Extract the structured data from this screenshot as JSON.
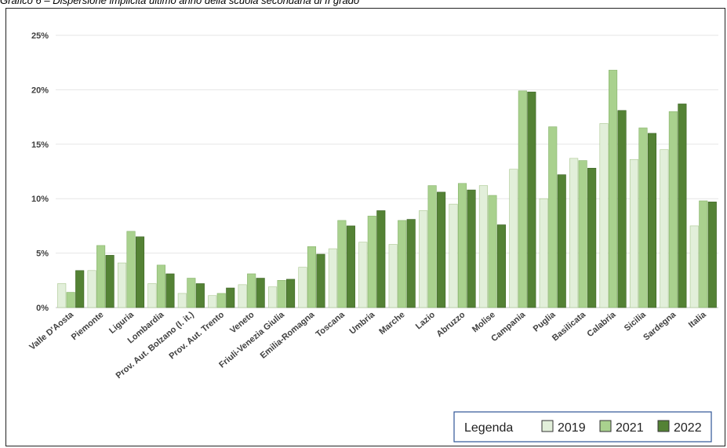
{
  "caption": "Grafico 6 – Dispersione implicita ultimo anno della scuola secondaria di II grado",
  "legend_title": "Legenda",
  "colors": {
    "2019": "#e2efda",
    "2021": "#a9d18e",
    "2022": "#548235"
  },
  "chart_data": {
    "type": "bar",
    "categories": [
      "Valle D'Aosta",
      "Piemonte",
      "Liguria",
      "Lombardia",
      "Prov. Aut. Bolzano (l. it.)",
      "Prov. Aut. Trento",
      "Veneto",
      "Friuli-Venezia Giulia",
      "Emilia-Romagna",
      "Toscana",
      "Umbria",
      "Marche",
      "Lazio",
      "Abruzzo",
      "Molise",
      "Campania",
      "Puglia",
      "Basilicata",
      "Calabria",
      "Sicilia",
      "Sardegna",
      "Italia"
    ],
    "series": [
      {
        "name": "2019",
        "values": [
          2.2,
          3.4,
          4.1,
          2.2,
          1.3,
          1.1,
          2.1,
          1.9,
          3.7,
          5.4,
          6.0,
          5.8,
          8.9,
          9.5,
          11.2,
          12.7,
          10.0,
          13.7,
          16.9,
          13.6,
          14.5,
          7.5
        ]
      },
      {
        "name": "2021",
        "values": [
          1.4,
          5.7,
          7.0,
          3.9,
          2.7,
          1.3,
          3.1,
          2.5,
          5.6,
          8.0,
          8.4,
          8.0,
          11.2,
          11.4,
          10.3,
          19.9,
          16.6,
          13.5,
          21.8,
          16.5,
          18.0,
          9.8
        ]
      },
      {
        "name": "2022",
        "values": [
          3.4,
          4.8,
          6.5,
          3.1,
          2.2,
          1.8,
          2.7,
          2.6,
          4.9,
          7.5,
          8.9,
          8.1,
          10.6,
          10.8,
          7.6,
          19.8,
          12.2,
          12.8,
          18.1,
          16.0,
          18.7,
          9.7
        ]
      }
    ],
    "yticks": [
      "0%",
      "5%",
      "10%",
      "15%",
      "20%",
      "25%"
    ],
    "ylim": [
      0,
      25
    ],
    "grid": true,
    "legend_position": "bottom-right"
  }
}
